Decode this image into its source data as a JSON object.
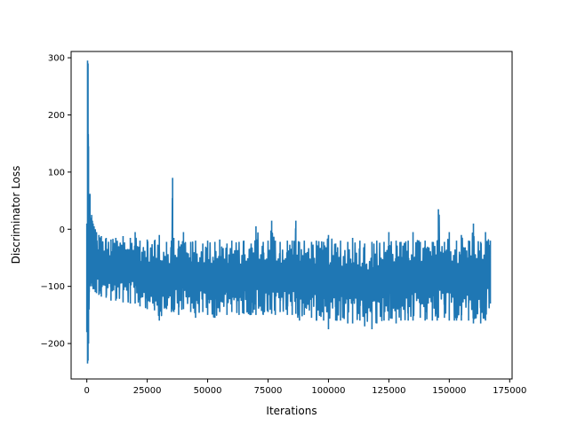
{
  "chart_data": {
    "type": "line",
    "title": "",
    "xlabel": "Iterations",
    "ylabel": "Discriminator Loss",
    "xlim": [
      -6500,
      176000
    ],
    "ylim": [
      -262,
      311
    ],
    "x_ticks": [
      0,
      25000,
      50000,
      75000,
      100000,
      125000,
      150000,
      175000
    ],
    "x_tick_labels": [
      "0",
      "25000",
      "50000",
      "75000",
      "100000",
      "125000",
      "150000",
      "175000"
    ],
    "y_ticks": [
      -200,
      -100,
      0,
      100,
      200,
      300
    ],
    "y_tick_labels": [
      "−200",
      "−100",
      "0",
      "100",
      "200",
      "300"
    ],
    "grid": false,
    "legend": "none",
    "color": "#1f77b4",
    "series": [
      {
        "x": [
          0,
          300,
          500,
          700,
          1000,
          1300,
          1600,
          2000,
          2300,
          2600,
          3000,
          3500,
          4000,
          5000,
          6000,
          8000,
          10000,
          12000,
          15000,
          18000,
          20000,
          22000,
          25000,
          28000,
          30000,
          33000,
          35000,
          35500,
          36000,
          38000,
          40000,
          43000,
          45000,
          48000,
          50000,
          53000,
          55000,
          58000,
          60000,
          63000,
          65000,
          68000,
          70000,
          73000,
          75000,
          76500,
          78000,
          80000,
          83000,
          85000,
          86500,
          88000,
          90000,
          93000,
          95000,
          98000,
          100000,
          103000,
          105000,
          108000,
          110000,
          113000,
          115000,
          118000,
          120000,
          123000,
          125000,
          128000,
          130000,
          133000,
          135000,
          138000,
          140000,
          143000,
          145000,
          145500,
          148000,
          150000,
          153000,
          155000,
          158000,
          160000,
          163000,
          165000,
          167000
        ],
        "y_max": [
          10,
          295,
          290,
          145,
          60,
          62,
          20,
          25,
          15,
          10,
          5,
          0,
          -5,
          -10,
          -12,
          -15,
          -18,
          -15,
          -12,
          -15,
          -5,
          -20,
          -18,
          -20,
          -10,
          -22,
          -20,
          90,
          -15,
          -20,
          -5,
          -22,
          -20,
          -25,
          -20,
          -22,
          -18,
          -25,
          -20,
          -22,
          -20,
          -25,
          5,
          -22,
          -20,
          15,
          -20,
          -22,
          -20,
          -20,
          15,
          -22,
          -20,
          -22,
          -20,
          -22,
          -10,
          -25,
          -20,
          -22,
          -15,
          -20,
          -25,
          -22,
          -20,
          -22,
          -5,
          -20,
          -22,
          -20,
          -5,
          -22,
          -20,
          -22,
          -20,
          35,
          -22,
          -5,
          -20,
          -10,
          -20,
          10,
          -22,
          -5,
          -20
        ],
        "y_min": [
          -180,
          -235,
          -230,
          -200,
          -110,
          -100,
          -100,
          -95,
          -100,
          -105,
          -105,
          -110,
          -112,
          -115,
          -118,
          -120,
          -125,
          -125,
          -128,
          -130,
          -130,
          -135,
          -140,
          -142,
          -160,
          -140,
          -145,
          -140,
          -145,
          -150,
          -140,
          -145,
          -155,
          -145,
          -150,
          -155,
          -145,
          -150,
          -145,
          -150,
          -148,
          -150,
          -150,
          -150,
          -145,
          -148,
          -150,
          -145,
          -150,
          -150,
          -148,
          -160,
          -150,
          -155,
          -160,
          -160,
          -175,
          -160,
          -160,
          -165,
          -165,
          -160,
          -170,
          -175,
          -165,
          -160,
          -160,
          -165,
          -160,
          -160,
          -160,
          -155,
          -160,
          -160,
          -160,
          -155,
          -155,
          -160,
          -160,
          -160,
          -160,
          -165,
          -165,
          -160,
          -130
        ]
      }
    ]
  }
}
